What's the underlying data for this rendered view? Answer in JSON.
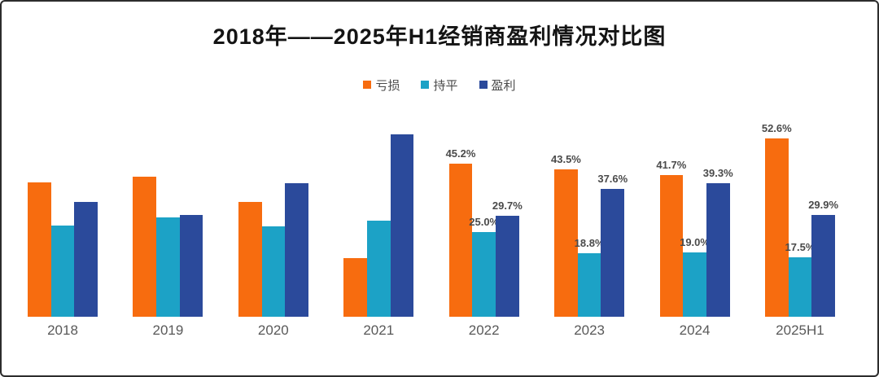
{
  "chart_data": {
    "type": "bar",
    "title": "2018年——2025年H1经销商盈利情况对比图",
    "categories": [
      "2018",
      "2019",
      "2020",
      "2021",
      "2022",
      "2023",
      "2024",
      "2025H1"
    ],
    "series": [
      {
        "name": "亏损",
        "color": "#f76c0f",
        "values": [
          39.5,
          41.2,
          33.8,
          17.2,
          45.2,
          43.5,
          41.7,
          52.6
        ],
        "labels": [
          "",
          "",
          "",
          "",
          "45.2%",
          "43.5%",
          "41.7%",
          "52.6%"
        ]
      },
      {
        "name": "持平",
        "color": "#1ca2c6",
        "values": [
          27.0,
          29.4,
          26.6,
          28.4,
          25.0,
          18.8,
          19.0,
          17.5
        ],
        "labels": [
          "",
          "",
          "",
          "",
          "25.0%",
          "18.8%",
          "19.0%",
          "17.5%"
        ]
      },
      {
        "name": "盈利",
        "color": "#2b4a9b",
        "values": [
          33.8,
          29.9,
          39.3,
          53.8,
          29.7,
          37.6,
          39.3,
          29.9
        ],
        "labels": [
          "",
          "",
          "",
          "",
          "29.7%",
          "37.6%",
          "39.3%",
          "29.9%"
        ]
      }
    ],
    "ylim": [
      0,
      60
    ],
    "value_suffix": "%",
    "grid": false,
    "axes_visible": false,
    "legend_position": "top"
  }
}
